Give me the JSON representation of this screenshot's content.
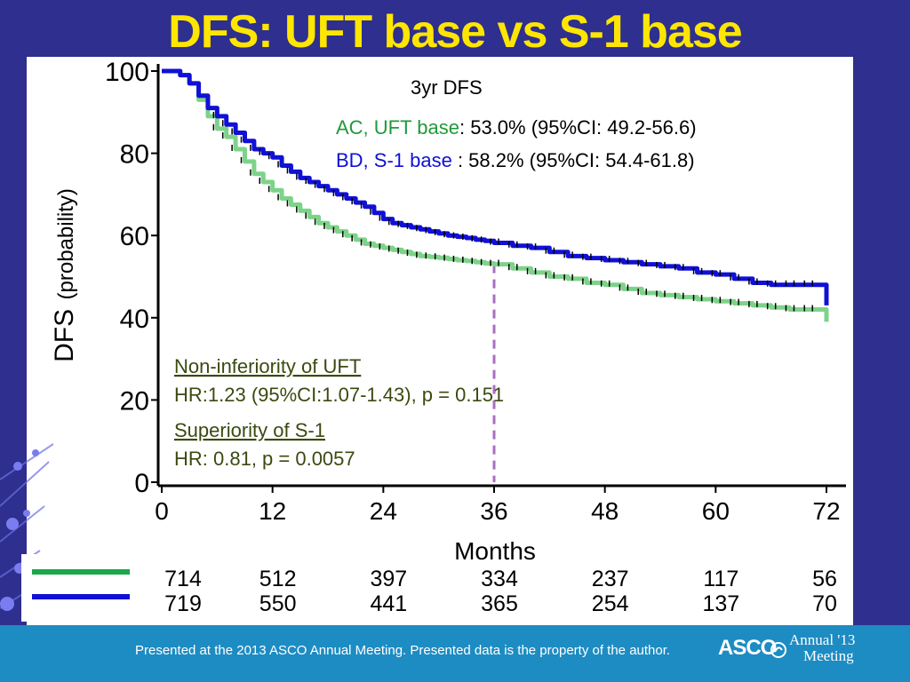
{
  "title": "DFS: UFT base vs S-1 base",
  "footer": {
    "text": "Presented at the 2013 ASCO Annual Meeting. Presented data is the property of the author.",
    "logo": "ASCO",
    "annual_line1": "Annual '13",
    "annual_line2": "Meeting"
  },
  "annotations": {
    "header": "3yr DFS",
    "arm_ac_label": "AC, UFT base",
    "arm_ac_value": ": 53.0% (95%CI: 49.2-56.6)",
    "arm_bd_label": "BD, S-1 base",
    "arm_bd_value": " : 58.2% (95%CI: 54.4-61.8)",
    "noninf_title": "Non-inferiority of UFT",
    "noninf_stat": "HR:1.23 (95%CI:1.07-1.43), p = 0.151",
    "sup_title": "Superiority of S-1",
    "sup_stat": "HR: 0.81, p = 0.0057"
  },
  "colors": {
    "uft": "#7dd389",
    "s1": "#1010d6",
    "marker": "#a870c0",
    "title": "#ffe600",
    "background": "#2e2f8e",
    "footer": "#1d8cc3",
    "annotation_green": "#1f8a3a",
    "annotation_dark": "#3a4a10"
  },
  "chart_data": {
    "type": "line",
    "xlabel": "Months",
    "ylabel_main": "DFS",
    "ylabel_paren": "(probability)",
    "xlim": [
      0,
      72
    ],
    "ylim": [
      0,
      100
    ],
    "xticks": [
      0,
      12,
      24,
      36,
      48,
      60,
      72
    ],
    "yticks": [
      0,
      20,
      40,
      60,
      80,
      100
    ],
    "reference_x": 36,
    "series": [
      {
        "name": "AC, UFT base",
        "color": "#7dd389",
        "x": [
          0,
          1,
          2,
          3,
          4,
          5,
          6,
          7,
          8,
          9,
          10,
          11,
          12,
          13,
          14,
          15,
          16,
          17,
          18,
          19,
          20,
          21,
          22,
          23,
          24,
          25,
          26,
          27,
          28,
          29,
          30,
          31,
          32,
          33,
          34,
          35,
          36,
          38,
          40,
          42,
          44,
          46,
          48,
          50,
          52,
          54,
          56,
          58,
          60,
          62,
          64,
          66,
          68,
          70,
          72
        ],
        "y": [
          100,
          100,
          99,
          97,
          93,
          89,
          86,
          84,
          81,
          78,
          75,
          73,
          71,
          69,
          67.5,
          66,
          64.5,
          63,
          62,
          61,
          60,
          59,
          58,
          57.5,
          57,
          56.5,
          56,
          55.5,
          55,
          54.8,
          54.6,
          54.3,
          54,
          53.8,
          53.5,
          53.2,
          53,
          52,
          51,
          50,
          49.5,
          48.5,
          48,
          47,
          46,
          45.5,
          45,
          44.5,
          44,
          43.5,
          43,
          42.5,
          42,
          42,
          39
        ]
      },
      {
        "name": "BD, S-1 base",
        "color": "#1010d6",
        "x": [
          0,
          1,
          2,
          3,
          4,
          5,
          6,
          7,
          8,
          9,
          10,
          11,
          12,
          13,
          14,
          15,
          16,
          17,
          18,
          19,
          20,
          21,
          22,
          23,
          24,
          25,
          26,
          27,
          28,
          29,
          30,
          31,
          32,
          33,
          34,
          35,
          36,
          38,
          40,
          42,
          44,
          46,
          48,
          50,
          52,
          54,
          56,
          58,
          60,
          62,
          64,
          66,
          68,
          70,
          72
        ],
        "y": [
          100,
          100,
          99,
          97,
          94,
          91,
          89,
          87,
          85,
          83,
          81,
          80,
          79,
          77,
          75.5,
          74,
          73,
          72,
          71,
          70,
          69,
          68,
          67,
          65.5,
          64,
          63,
          62.5,
          62,
          61.5,
          61,
          60.5,
          60,
          59.7,
          59.4,
          59,
          58.7,
          58.2,
          57.5,
          57,
          56,
          55,
          54.5,
          54,
          53.5,
          53,
          52.5,
          52,
          51,
          50.5,
          49.5,
          48.5,
          48,
          48,
          48,
          43
        ]
      }
    ],
    "risk_table": {
      "x": [
        0,
        12,
        24,
        36,
        48,
        60,
        72
      ],
      "rows": [
        {
          "color": "#1aa84a",
          "counts": [
            "714",
            "512",
            "397",
            "334",
            "237",
            "117",
            "56"
          ]
        },
        {
          "color": "#1010d6",
          "counts": [
            "719",
            "550",
            "441",
            "365",
            "254",
            "137",
            "70"
          ]
        }
      ]
    }
  }
}
